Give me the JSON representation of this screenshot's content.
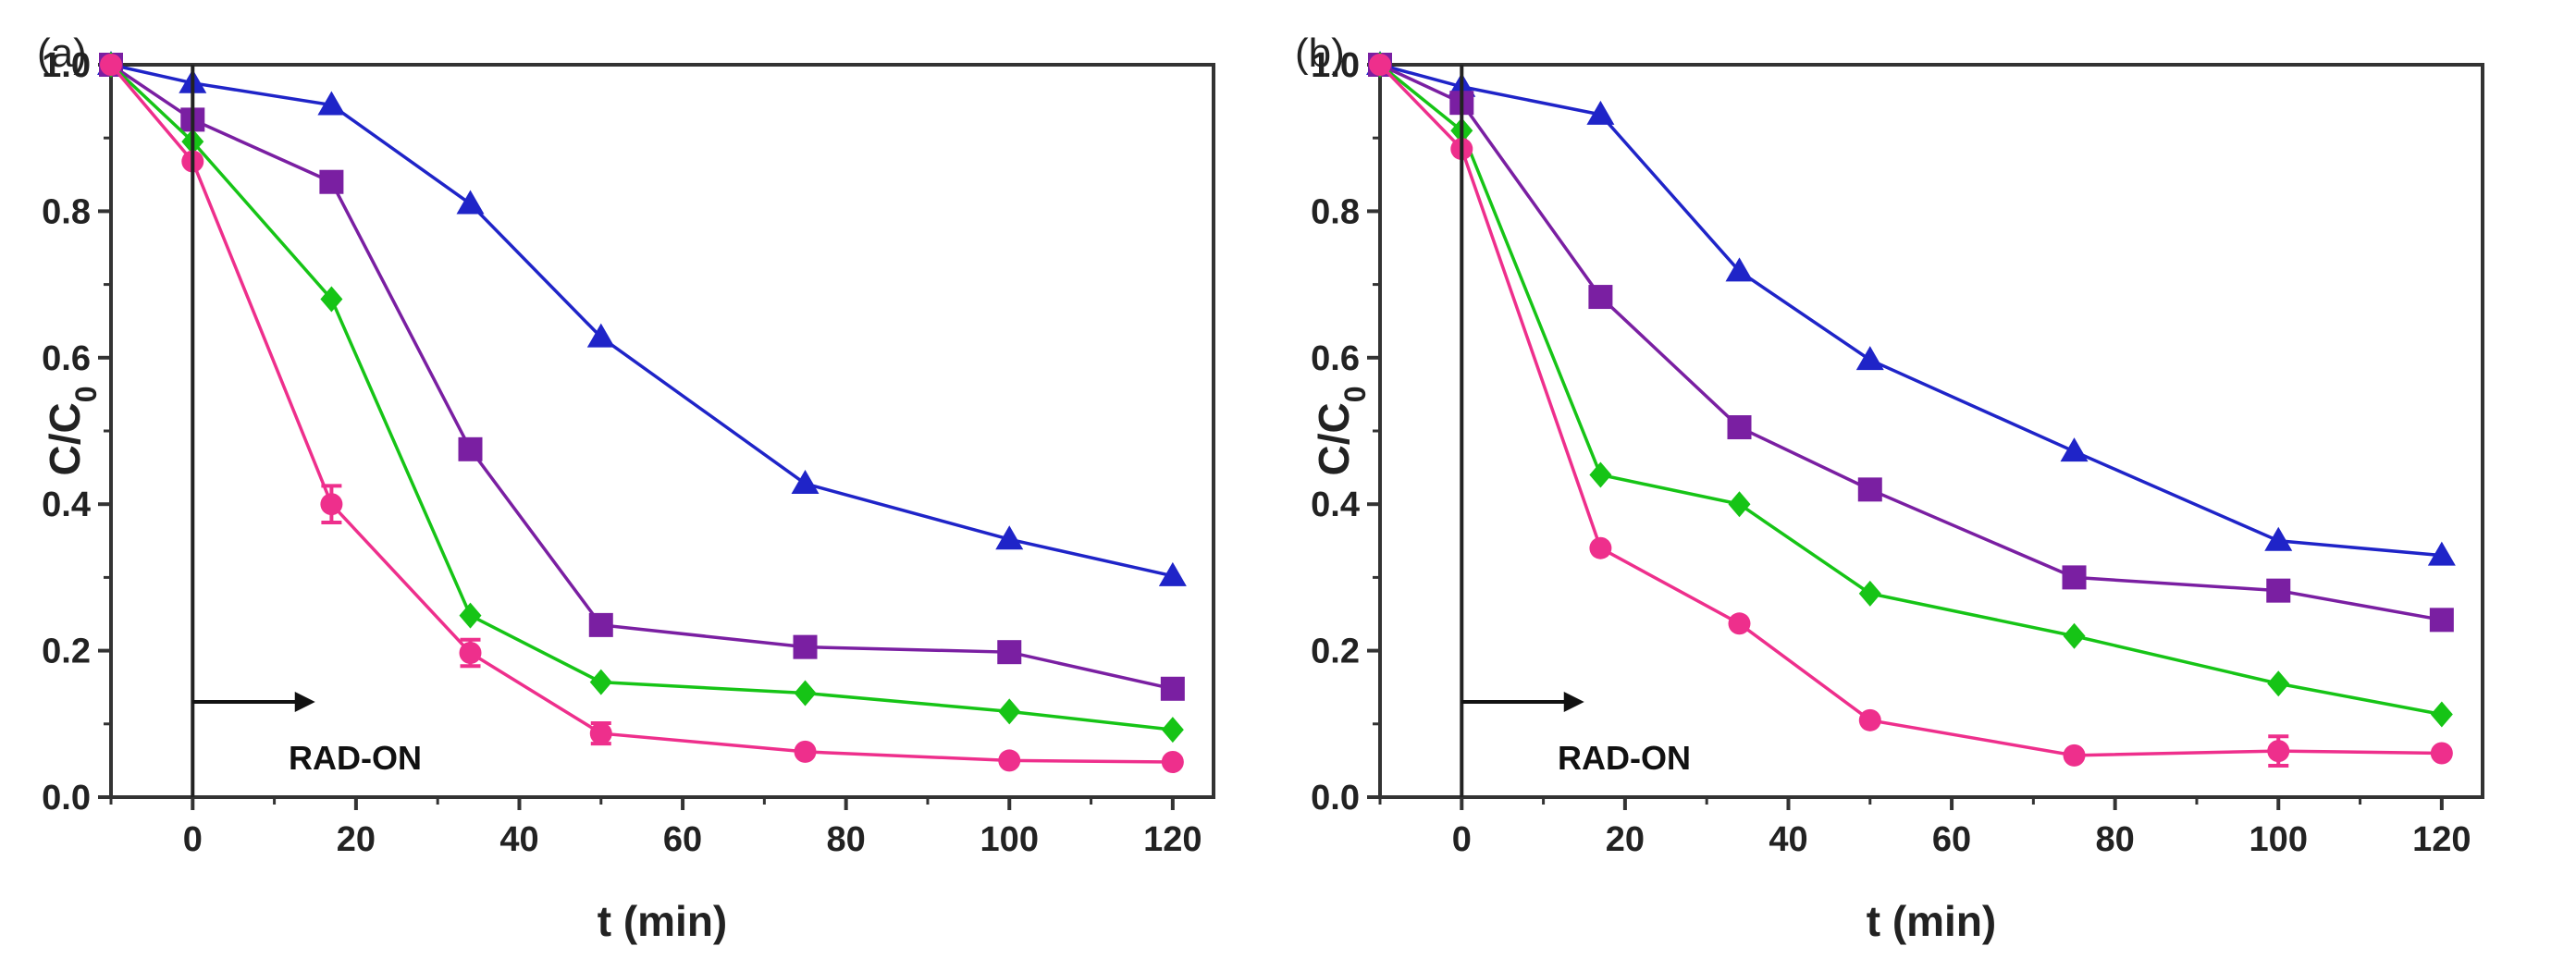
{
  "chart_data": [
    {
      "type": "line",
      "panel_label": "(a)",
      "xlabel": "t (min)",
      "ylabel": "C/C0",
      "ylabel_main": "C/C",
      "ylabel_sub": "0",
      "xlim": [
        -10,
        125
      ],
      "ylim": [
        0,
        1.0
      ],
      "xticks": [
        0,
        20,
        40,
        60,
        80,
        100,
        120
      ],
      "yticks": [
        "0.0",
        "0.2",
        "0.4",
        "0.6",
        "0.8",
        "1.0"
      ],
      "grid": false,
      "annotation": {
        "text": "RAD-ON",
        "arrow_from_x": 0,
        "arrow_to_x": 15,
        "arrow_y": 0.13,
        "vline_x": 0
      },
      "series": [
        {
          "name": "triangle",
          "marker": "triangle",
          "color": "#1f24c8",
          "x": [
            -10,
            0,
            17,
            34,
            50,
            75,
            100,
            120
          ],
          "y": [
            1.0,
            0.975,
            0.945,
            0.81,
            0.628,
            0.428,
            0.352,
            0.302
          ]
        },
        {
          "name": "square",
          "marker": "square",
          "color": "#7a1fa2",
          "x": [
            -10,
            0,
            17,
            34,
            50,
            75,
            100,
            120
          ],
          "y": [
            1.0,
            0.925,
            0.84,
            0.475,
            0.235,
            0.205,
            0.198,
            0.148
          ]
        },
        {
          "name": "diamond",
          "marker": "diamond",
          "color": "#16c416",
          "x": [
            -10,
            0,
            17,
            34,
            50,
            75,
            100,
            120
          ],
          "y": [
            1.0,
            0.895,
            0.68,
            0.248,
            0.157,
            0.142,
            0.117,
            0.092
          ]
        },
        {
          "name": "circle",
          "marker": "circle",
          "color": "#ee2f8c",
          "x": [
            -10,
            0,
            17,
            34,
            50,
            75,
            100,
            120
          ],
          "y": [
            1.0,
            0.868,
            0.4,
            0.197,
            0.087,
            0.062,
            0.05,
            0.048
          ],
          "err": [
            0,
            0,
            0.025,
            0.018,
            0.014,
            0,
            0,
            0
          ]
        }
      ]
    },
    {
      "type": "line",
      "panel_label": "(b)",
      "xlabel": "t (min)",
      "ylabel": "C/C0",
      "ylabel_main": "C/C",
      "ylabel_sub": "0",
      "xlim": [
        -10,
        125
      ],
      "ylim": [
        0,
        1.0
      ],
      "xticks": [
        0,
        20,
        40,
        60,
        80,
        100,
        120
      ],
      "yticks": [
        "0.0",
        "0.2",
        "0.4",
        "0.6",
        "0.8",
        "1.0"
      ],
      "grid": false,
      "annotation": {
        "text": "RAD-ON",
        "arrow_from_x": 0,
        "arrow_to_x": 15,
        "arrow_y": 0.13,
        "vline_x": 0
      },
      "series": [
        {
          "name": "triangle",
          "marker": "triangle",
          "color": "#1f24c8",
          "x": [
            -10,
            0,
            17,
            34,
            50,
            75,
            100,
            120
          ],
          "y": [
            1.0,
            0.97,
            0.932,
            0.718,
            0.597,
            0.472,
            0.35,
            0.33
          ]
        },
        {
          "name": "square",
          "marker": "square",
          "color": "#7a1fa2",
          "x": [
            -10,
            0,
            17,
            34,
            50,
            75,
            100,
            120
          ],
          "y": [
            1.0,
            0.948,
            0.683,
            0.505,
            0.42,
            0.3,
            0.282,
            0.242
          ]
        },
        {
          "name": "diamond",
          "marker": "diamond",
          "color": "#16c416",
          "x": [
            -10,
            0,
            17,
            34,
            50,
            75,
            100,
            120
          ],
          "y": [
            1.0,
            0.91,
            0.44,
            0.4,
            0.278,
            0.22,
            0.155,
            0.113
          ]
        },
        {
          "name": "circle",
          "marker": "circle",
          "color": "#ee2f8c",
          "x": [
            -10,
            0,
            17,
            34,
            50,
            75,
            100,
            120
          ],
          "y": [
            1.0,
            0.885,
            0.34,
            0.237,
            0.105,
            0.057,
            0.063,
            0.06
          ],
          "err": [
            0,
            0,
            0,
            0,
            0,
            0,
            0.02,
            0
          ]
        }
      ]
    }
  ]
}
